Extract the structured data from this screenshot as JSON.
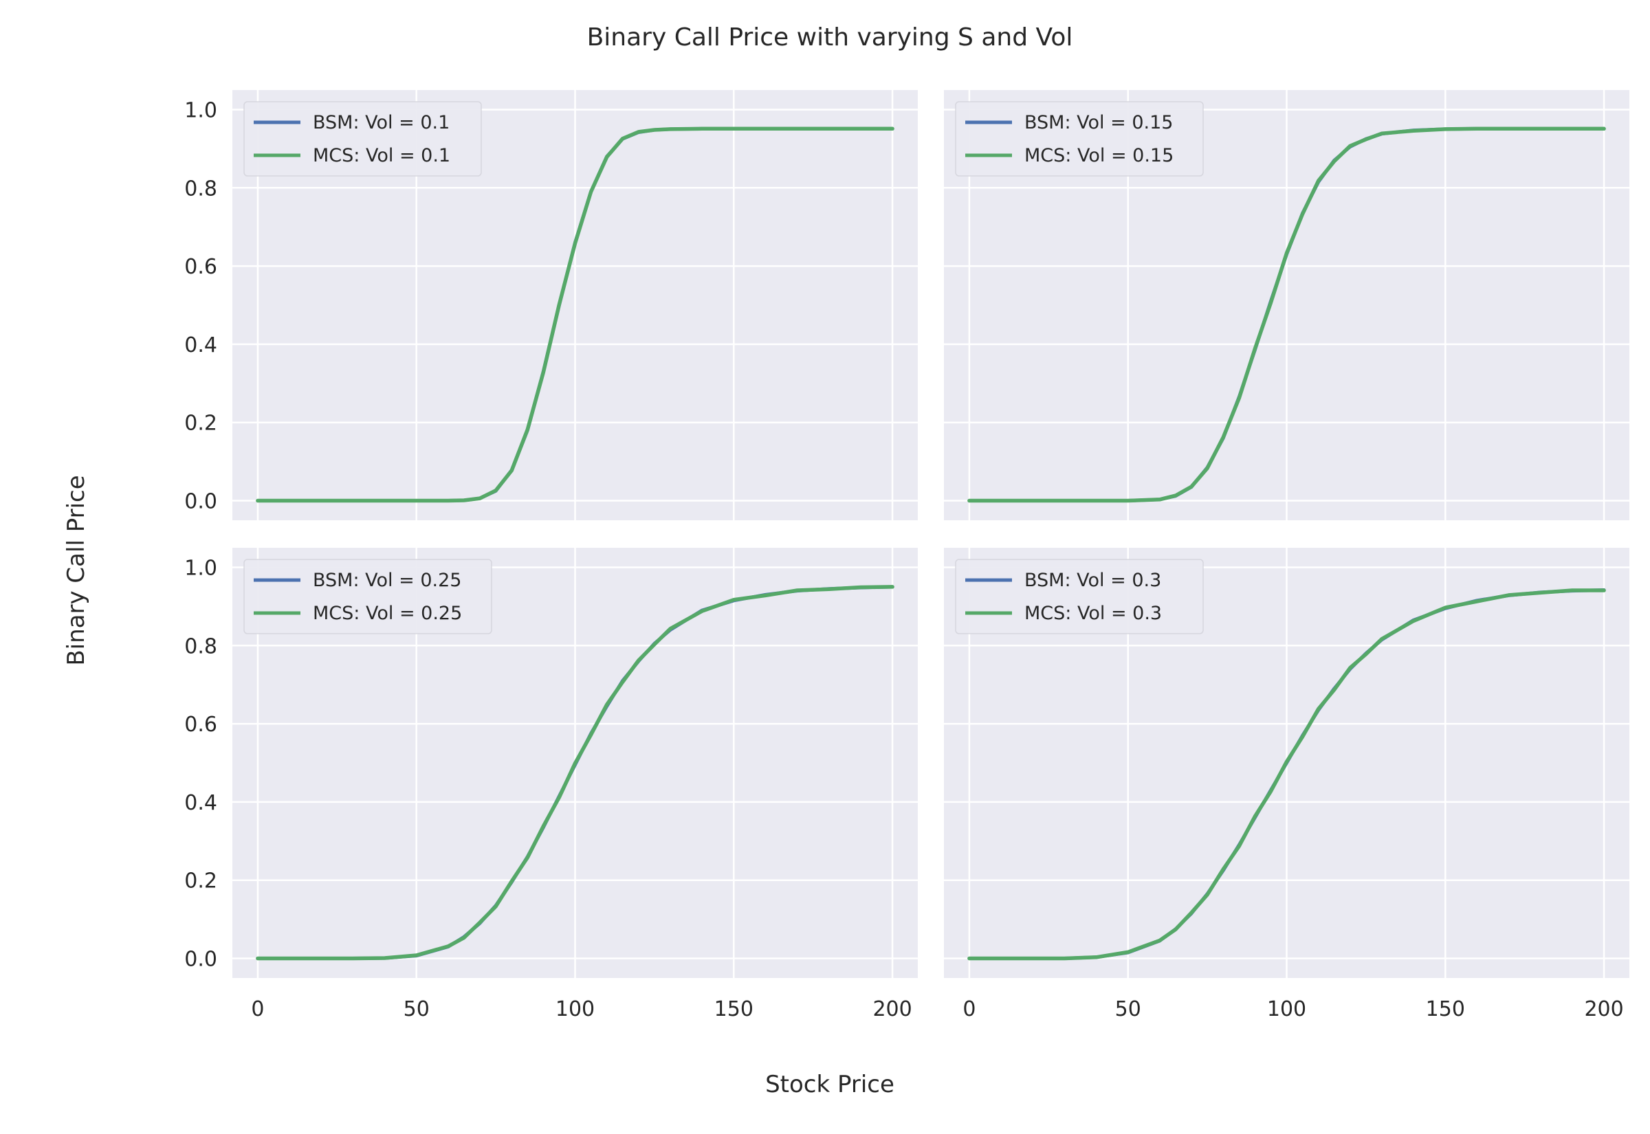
{
  "figure": {
    "title": "Binary Call Price with varying S and Vol",
    "xlabel": "Stock Price",
    "ylabel": "Binary Call Price",
    "background": "#ffffff",
    "axes_face_color": "#eaeaf2",
    "grid_color": "#ffffff",
    "series_colors": {
      "BSM": "#4c72b0",
      "MCS": "#55a868"
    }
  },
  "chart_data": [
    {
      "type": "line",
      "x": [
        0,
        10,
        20,
        30,
        40,
        50,
        60,
        65,
        70,
        75,
        80,
        85,
        90,
        95,
        100,
        105,
        110,
        115,
        120,
        125,
        130,
        140,
        150,
        160,
        170,
        180,
        190,
        200
      ],
      "series": [
        {
          "name": "BSM: Vol = 0.1",
          "values": [
            0,
            0,
            0,
            0,
            0,
            0,
            0,
            0.001,
            0.006,
            0.025,
            0.078,
            0.18,
            0.33,
            0.5,
            0.66,
            0.79,
            0.88,
            0.925,
            0.942,
            0.948,
            0.95,
            0.951,
            0.951,
            0.951,
            0.951,
            0.951,
            0.951,
            0.951
          ]
        },
        {
          "name": "MCS: Vol = 0.1",
          "values": [
            0,
            0,
            0,
            0,
            0,
            0,
            0,
            0.001,
            0.006,
            0.026,
            0.077,
            0.182,
            0.328,
            0.502,
            0.658,
            0.79,
            0.879,
            0.926,
            0.943,
            0.948,
            0.95,
            0.951,
            0.951,
            0.951,
            0.951,
            0.951,
            0.951,
            0.951
          ]
        }
      ],
      "xticks": [
        "0",
        "50",
        "100",
        "150",
        "200"
      ],
      "yticks": [
        "0.0",
        "0.2",
        "0.4",
        "0.6",
        "0.8",
        "1.0"
      ],
      "xlim": [
        -8,
        208
      ],
      "ylim": [
        -0.05,
        1.05
      ],
      "grid": true,
      "legend": "top-left"
    },
    {
      "type": "line",
      "x": [
        0,
        10,
        20,
        30,
        40,
        50,
        60,
        65,
        70,
        75,
        80,
        85,
        90,
        95,
        100,
        105,
        110,
        115,
        120,
        125,
        130,
        140,
        150,
        160,
        170,
        180,
        190,
        200
      ],
      "series": [
        {
          "name": "BSM: Vol = 0.15",
          "values": [
            0,
            0,
            0,
            0,
            0,
            0,
            0.003,
            0.012,
            0.035,
            0.085,
            0.16,
            0.265,
            0.385,
            0.51,
            0.63,
            0.735,
            0.815,
            0.87,
            0.905,
            0.925,
            0.938,
            0.947,
            0.95,
            0.951,
            0.951,
            0.951,
            0.951,
            0.951
          ]
        },
        {
          "name": "MCS: Vol = 0.15",
          "values": [
            0,
            0,
            0,
            0,
            0,
            0,
            0.003,
            0.013,
            0.036,
            0.083,
            0.162,
            0.262,
            0.388,
            0.506,
            0.633,
            0.733,
            0.818,
            0.868,
            0.907,
            0.924,
            0.939,
            0.946,
            0.95,
            0.951,
            0.951,
            0.951,
            0.951,
            0.951
          ]
        }
      ],
      "xticks": [
        "0",
        "50",
        "100",
        "150",
        "200"
      ],
      "yticks": [
        "0.0",
        "0.2",
        "0.4",
        "0.6",
        "0.8",
        "1.0"
      ],
      "xlim": [
        -8,
        208
      ],
      "ylim": [
        -0.05,
        1.05
      ],
      "grid": true,
      "legend": "top-left"
    },
    {
      "type": "line",
      "x": [
        0,
        10,
        20,
        30,
        40,
        50,
        60,
        65,
        70,
        75,
        80,
        85,
        90,
        95,
        100,
        105,
        110,
        115,
        120,
        125,
        130,
        140,
        150,
        160,
        170,
        180,
        190,
        200
      ],
      "series": [
        {
          "name": "BSM: Vol = 0.25",
          "values": [
            0,
            0,
            0,
            0,
            0.001,
            0.007,
            0.03,
            0.055,
            0.09,
            0.135,
            0.195,
            0.26,
            0.335,
            0.415,
            0.495,
            0.575,
            0.645,
            0.71,
            0.76,
            0.805,
            0.84,
            0.89,
            0.915,
            0.93,
            0.94,
            0.945,
            0.948,
            0.95
          ]
        },
        {
          "name": "MCS: Vol = 0.25",
          "values": [
            0,
            0,
            0,
            0,
            0.001,
            0.008,
            0.031,
            0.053,
            0.092,
            0.133,
            0.197,
            0.258,
            0.338,
            0.412,
            0.499,
            0.572,
            0.649,
            0.707,
            0.762,
            0.803,
            0.843,
            0.888,
            0.917,
            0.928,
            0.941,
            0.944,
            0.949,
            0.95
          ]
        }
      ],
      "xticks": [
        "0",
        "50",
        "100",
        "150",
        "200"
      ],
      "yticks": [
        "0.0",
        "0.2",
        "0.4",
        "0.6",
        "0.8",
        "1.0"
      ],
      "xlim": [
        -8,
        208
      ],
      "ylim": [
        -0.05,
        1.05
      ],
      "grid": true,
      "legend": "top-left"
    },
    {
      "type": "line",
      "x": [
        0,
        10,
        20,
        30,
        40,
        50,
        60,
        65,
        70,
        75,
        80,
        85,
        90,
        95,
        100,
        105,
        110,
        115,
        120,
        125,
        130,
        140,
        150,
        160,
        170,
        180,
        190,
        200
      ],
      "series": [
        {
          "name": "BSM: Vol = 0.3",
          "values": [
            0,
            0,
            0,
            0,
            0.003,
            0.015,
            0.045,
            0.075,
            0.115,
            0.165,
            0.225,
            0.29,
            0.36,
            0.43,
            0.5,
            0.57,
            0.635,
            0.69,
            0.74,
            0.78,
            0.815,
            0.865,
            0.895,
            0.915,
            0.928,
            0.936,
            0.94,
            0.942
          ]
        },
        {
          "name": "MCS: Vol = 0.3",
          "values": [
            0,
            0,
            0,
            0,
            0.003,
            0.016,
            0.046,
            0.074,
            0.117,
            0.163,
            0.228,
            0.287,
            0.363,
            0.427,
            0.503,
            0.567,
            0.638,
            0.687,
            0.743,
            0.778,
            0.817,
            0.863,
            0.897,
            0.913,
            0.929,
            0.935,
            0.941,
            0.941
          ]
        }
      ],
      "xticks": [
        "0",
        "50",
        "100",
        "150",
        "200"
      ],
      "yticks": [
        "0.0",
        "0.2",
        "0.4",
        "0.6",
        "0.8",
        "1.0"
      ],
      "xlim": [
        -8,
        208
      ],
      "ylim": [
        -0.05,
        1.05
      ],
      "grid": true,
      "legend": "top-left"
    }
  ]
}
